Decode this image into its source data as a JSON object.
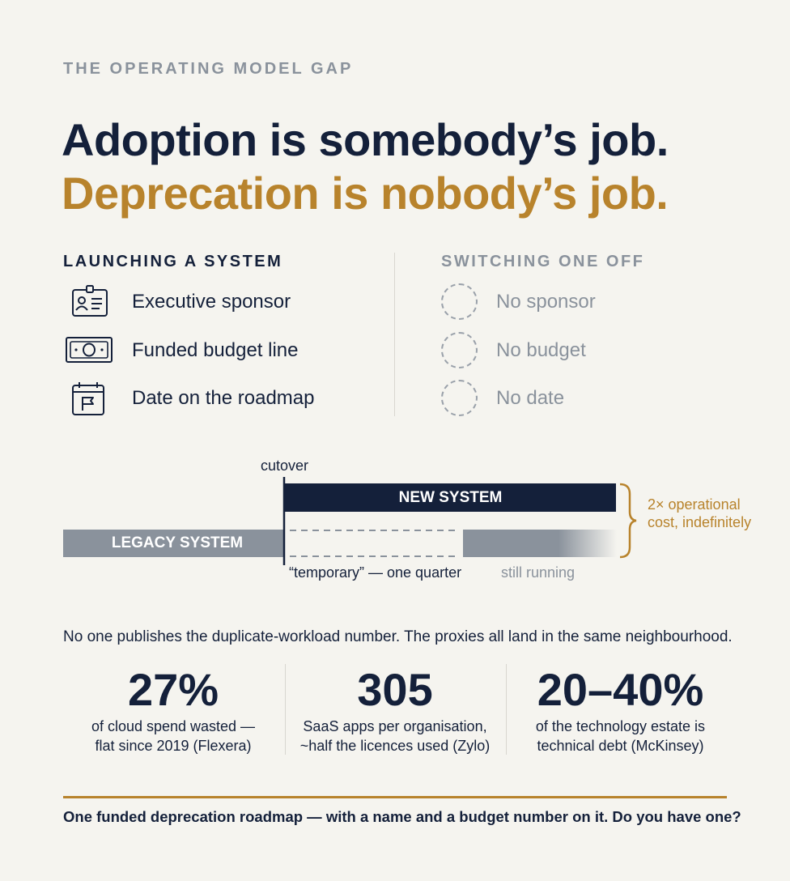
{
  "eyebrow": "THE OPERATING MODEL GAP",
  "headline": {
    "line1": "Adoption is somebody’s job.",
    "line2": "Deprecation is nobody’s job."
  },
  "launching": {
    "title": "LAUNCHING A SYSTEM",
    "items": [
      {
        "icon": "id-badge-icon",
        "label": "Executive sponsor"
      },
      {
        "icon": "banknote-icon",
        "label": "Funded budget line"
      },
      {
        "icon": "calendar-flag-icon",
        "label": "Date on the roadmap"
      }
    ]
  },
  "switching": {
    "title": "SWITCHING ONE OFF",
    "items": [
      {
        "icon": "dashed-circle-icon",
        "label": "No sponsor"
      },
      {
        "icon": "dashed-circle-icon",
        "label": "No budget"
      },
      {
        "icon": "dashed-circle-icon",
        "label": "No date"
      }
    ]
  },
  "timeline": {
    "cutover": "cutover",
    "new_system": "NEW SYSTEM",
    "legacy_system": "LEGACY SYSTEM",
    "temporary": "“temporary” — one quarter",
    "still_running": "still running",
    "cost": "2× operational cost, indefinitely"
  },
  "intro": "No one publishes the duplicate-workload number. The proxies all land in the same neighbourhood.",
  "stats": [
    {
      "value": "27%",
      "line1": "of cloud spend wasted —",
      "line2": "flat since 2019 (Flexera)"
    },
    {
      "value": "305",
      "line1": "SaaS apps per organisation,",
      "line2": "~half the licences used (Zylo)"
    },
    {
      "value": "20–40%",
      "line1": "of the technology estate is",
      "line2": "technical debt (McKinsey)"
    }
  ],
  "cta": "One funded deprecation roadmap — with a name and a budget number on it. Do you have one?",
  "colors": {
    "navy": "#14203a",
    "gold": "#b8832c",
    "gray": "#8a929c",
    "legacy_bar": "#8a929c",
    "background": "#f5f4ef"
  }
}
